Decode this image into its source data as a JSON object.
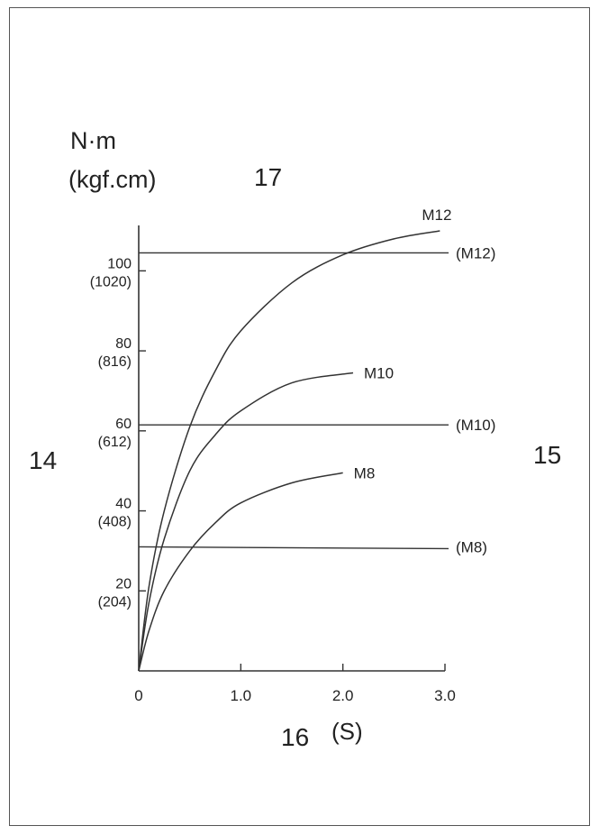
{
  "chart_data": {
    "type": "line",
    "ylabel_line1": "N·m",
    "ylabel_line2": "(kgf.cm)",
    "xunit": "(S)",
    "callouts": [
      "14",
      "15",
      "16",
      "17"
    ],
    "xlim": [
      0,
      3.0
    ],
    "ylim": [
      0,
      110
    ],
    "x_ticks": [
      {
        "value": 0,
        "label": "0"
      },
      {
        "value": 1.0,
        "label": "1.0"
      },
      {
        "value": 2.0,
        "label": "2.0"
      },
      {
        "value": 3.0,
        "label": "3.0"
      }
    ],
    "y_ticks": [
      {
        "value": 20,
        "label": "20",
        "sub": "(204)"
      },
      {
        "value": 40,
        "label": "40",
        "sub": "(408)"
      },
      {
        "value": 60,
        "label": "60",
        "sub": "(612)"
      },
      {
        "value": 80,
        "label": "80",
        "sub": "(816)"
      },
      {
        "value": 100,
        "label": "100",
        "sub": "(1020)"
      }
    ],
    "series": [
      {
        "name": "M12",
        "x": [
          0,
          0.1,
          0.25,
          0.5,
          0.75,
          1.0,
          1.5,
          2.0,
          2.5,
          2.95
        ],
        "y": [
          0,
          21,
          40,
          61,
          75,
          85,
          97,
          104,
          108,
          110
        ]
      },
      {
        "name": "M10",
        "x": [
          0,
          0.1,
          0.25,
          0.5,
          0.75,
          1.0,
          1.5,
          2.1
        ],
        "y": [
          0,
          17,
          33,
          50,
          59,
          65,
          72,
          74.5
        ]
      },
      {
        "name": "M8",
        "x": [
          0,
          0.1,
          0.25,
          0.5,
          0.75,
          1.0,
          1.5,
          2.0
        ],
        "y": [
          0,
          10,
          20,
          30,
          37,
          42,
          47,
          49.5
        ]
      }
    ],
    "reference_lines": [
      {
        "name": "(M12)",
        "y": 104.5
      },
      {
        "name": "(M10)",
        "y": 61.5
      },
      {
        "name": "(M8)",
        "y": 31
      }
    ]
  }
}
